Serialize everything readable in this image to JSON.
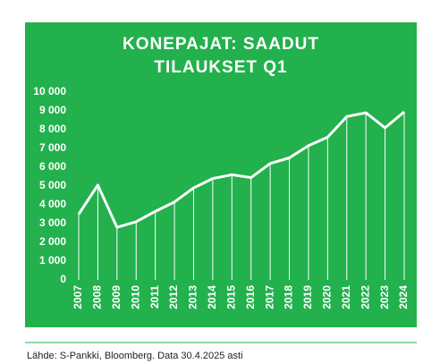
{
  "chart_data": {
    "type": "line",
    "title": [
      "KONEPAJAT: SAADUT",
      "TILAUKSET Q1"
    ],
    "source": "Lähde: S-Pankki, Bloomberg. Data 30.4.2025 asti",
    "categories": [
      "2007",
      "2008",
      "2009",
      "2010",
      "2011",
      "2012",
      "2013",
      "2014",
      "2015",
      "2016",
      "2017",
      "2018",
      "2019",
      "2020",
      "2021",
      "2022",
      "2023",
      "2024"
    ],
    "values": [
      3500,
      5050,
      2800,
      3100,
      3650,
      4150,
      4900,
      5400,
      5600,
      5450,
      6200,
      6500,
      7150,
      7600,
      8700,
      8900,
      8100,
      8950
    ],
    "color": "#ffffff",
    "ylim": [
      0,
      10000
    ],
    "yticks": [
      0,
      {
        "value": 1000,
        "label": "1 000"
      },
      {
        "value": 2000,
        "label": "2 000"
      },
      {
        "value": 3000,
        "label": "3 000"
      },
      {
        "value": 4000,
        "label": "4 000"
      },
      {
        "value": 5000,
        "label": "5 000"
      },
      {
        "value": 6000,
        "label": "6 000"
      },
      {
        "value": 7000,
        "label": "7 000"
      },
      {
        "value": 8000,
        "label": "8 000"
      },
      {
        "value": 9000,
        "label": "9 000"
      },
      {
        "value": 10000,
        "label": "10 000"
      }
    ]
  }
}
